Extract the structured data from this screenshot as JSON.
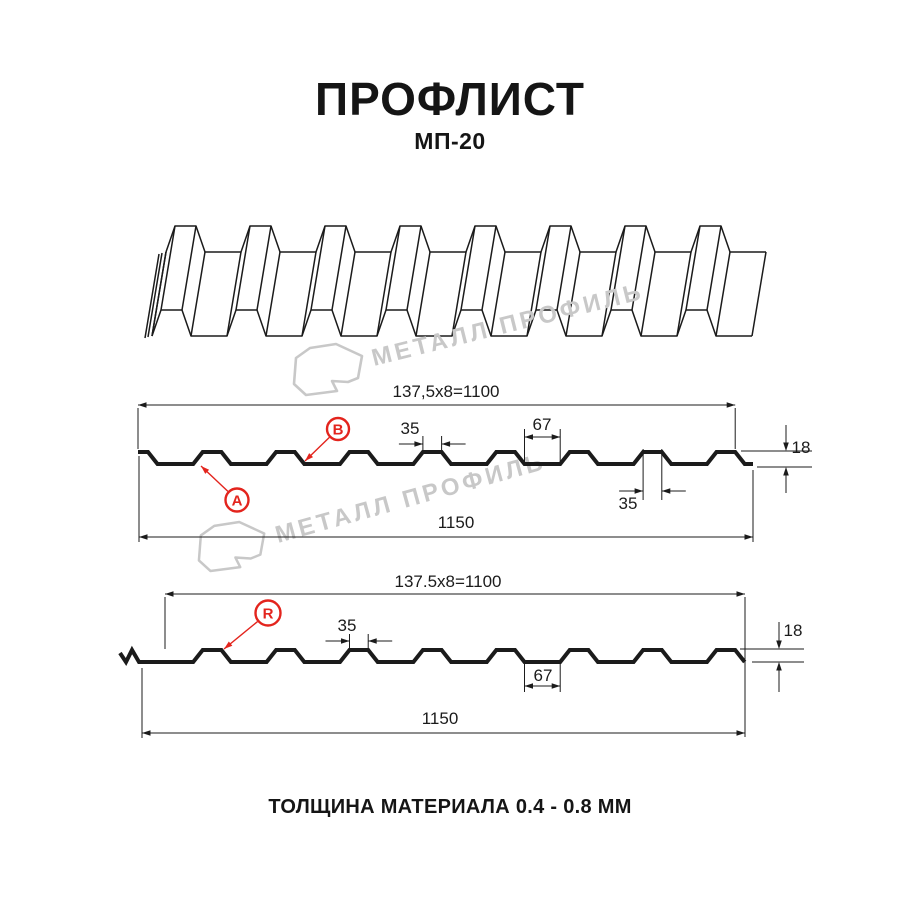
{
  "header": {
    "title": "ПРОФЛИСТ",
    "subtitle": "МП-20"
  },
  "footer": {
    "text": "ТОЛЩИНА МАТЕРИАЛА 0.4 - 0.8 ММ"
  },
  "watermark": {
    "text": "МЕТАЛЛ ПРОФИЛЬ"
  },
  "colors": {
    "line": "#1b1b1b",
    "red": "#e3241d",
    "watermark": "#c8c8c8"
  },
  "drawing": {
    "profile_ab": {
      "coverage_label": "137,5x8=1100",
      "overall_label": "1150",
      "crest_top_label": "35",
      "flat_label": "67",
      "height_label": "18",
      "crest_bottom_label": "35",
      "marker_a": "A",
      "marker_b": "B"
    },
    "profile_r": {
      "coverage_label": "137.5x8=1100",
      "overall_label": "1150",
      "crest_label": "35",
      "flat_label": "67",
      "height_label": "18",
      "marker_r": "R"
    },
    "spec": {
      "period_mm": 137.5,
      "periods": 8,
      "coverage_mm": 1100,
      "overall_mm": 1150,
      "crest_width_mm": 35,
      "flat_width_mm": 67,
      "height_mm": 18,
      "thickness_range_mm": "0.4 - 0.8"
    }
  }
}
